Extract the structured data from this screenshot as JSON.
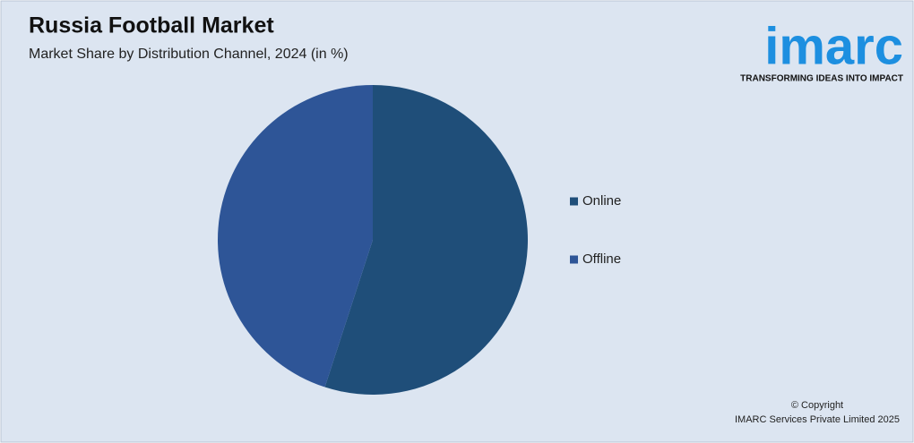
{
  "chart_data": {
    "type": "pie",
    "title": "Russia Football Market",
    "subtitle": "Market Share by Distribution Channel, 2024 (in %)",
    "categories": [
      "Online",
      "Offline"
    ],
    "values": [
      55,
      45
    ],
    "colors": [
      "#1f4e79",
      "#2e5597"
    ],
    "legend": "right"
  },
  "logo": {
    "name": "imarc",
    "tagline": "TRANSFORMING IDEAS INTO IMPACT"
  },
  "footer": {
    "copyright": "© Copyright",
    "company": "IMARC Services Private Limited 2025"
  }
}
